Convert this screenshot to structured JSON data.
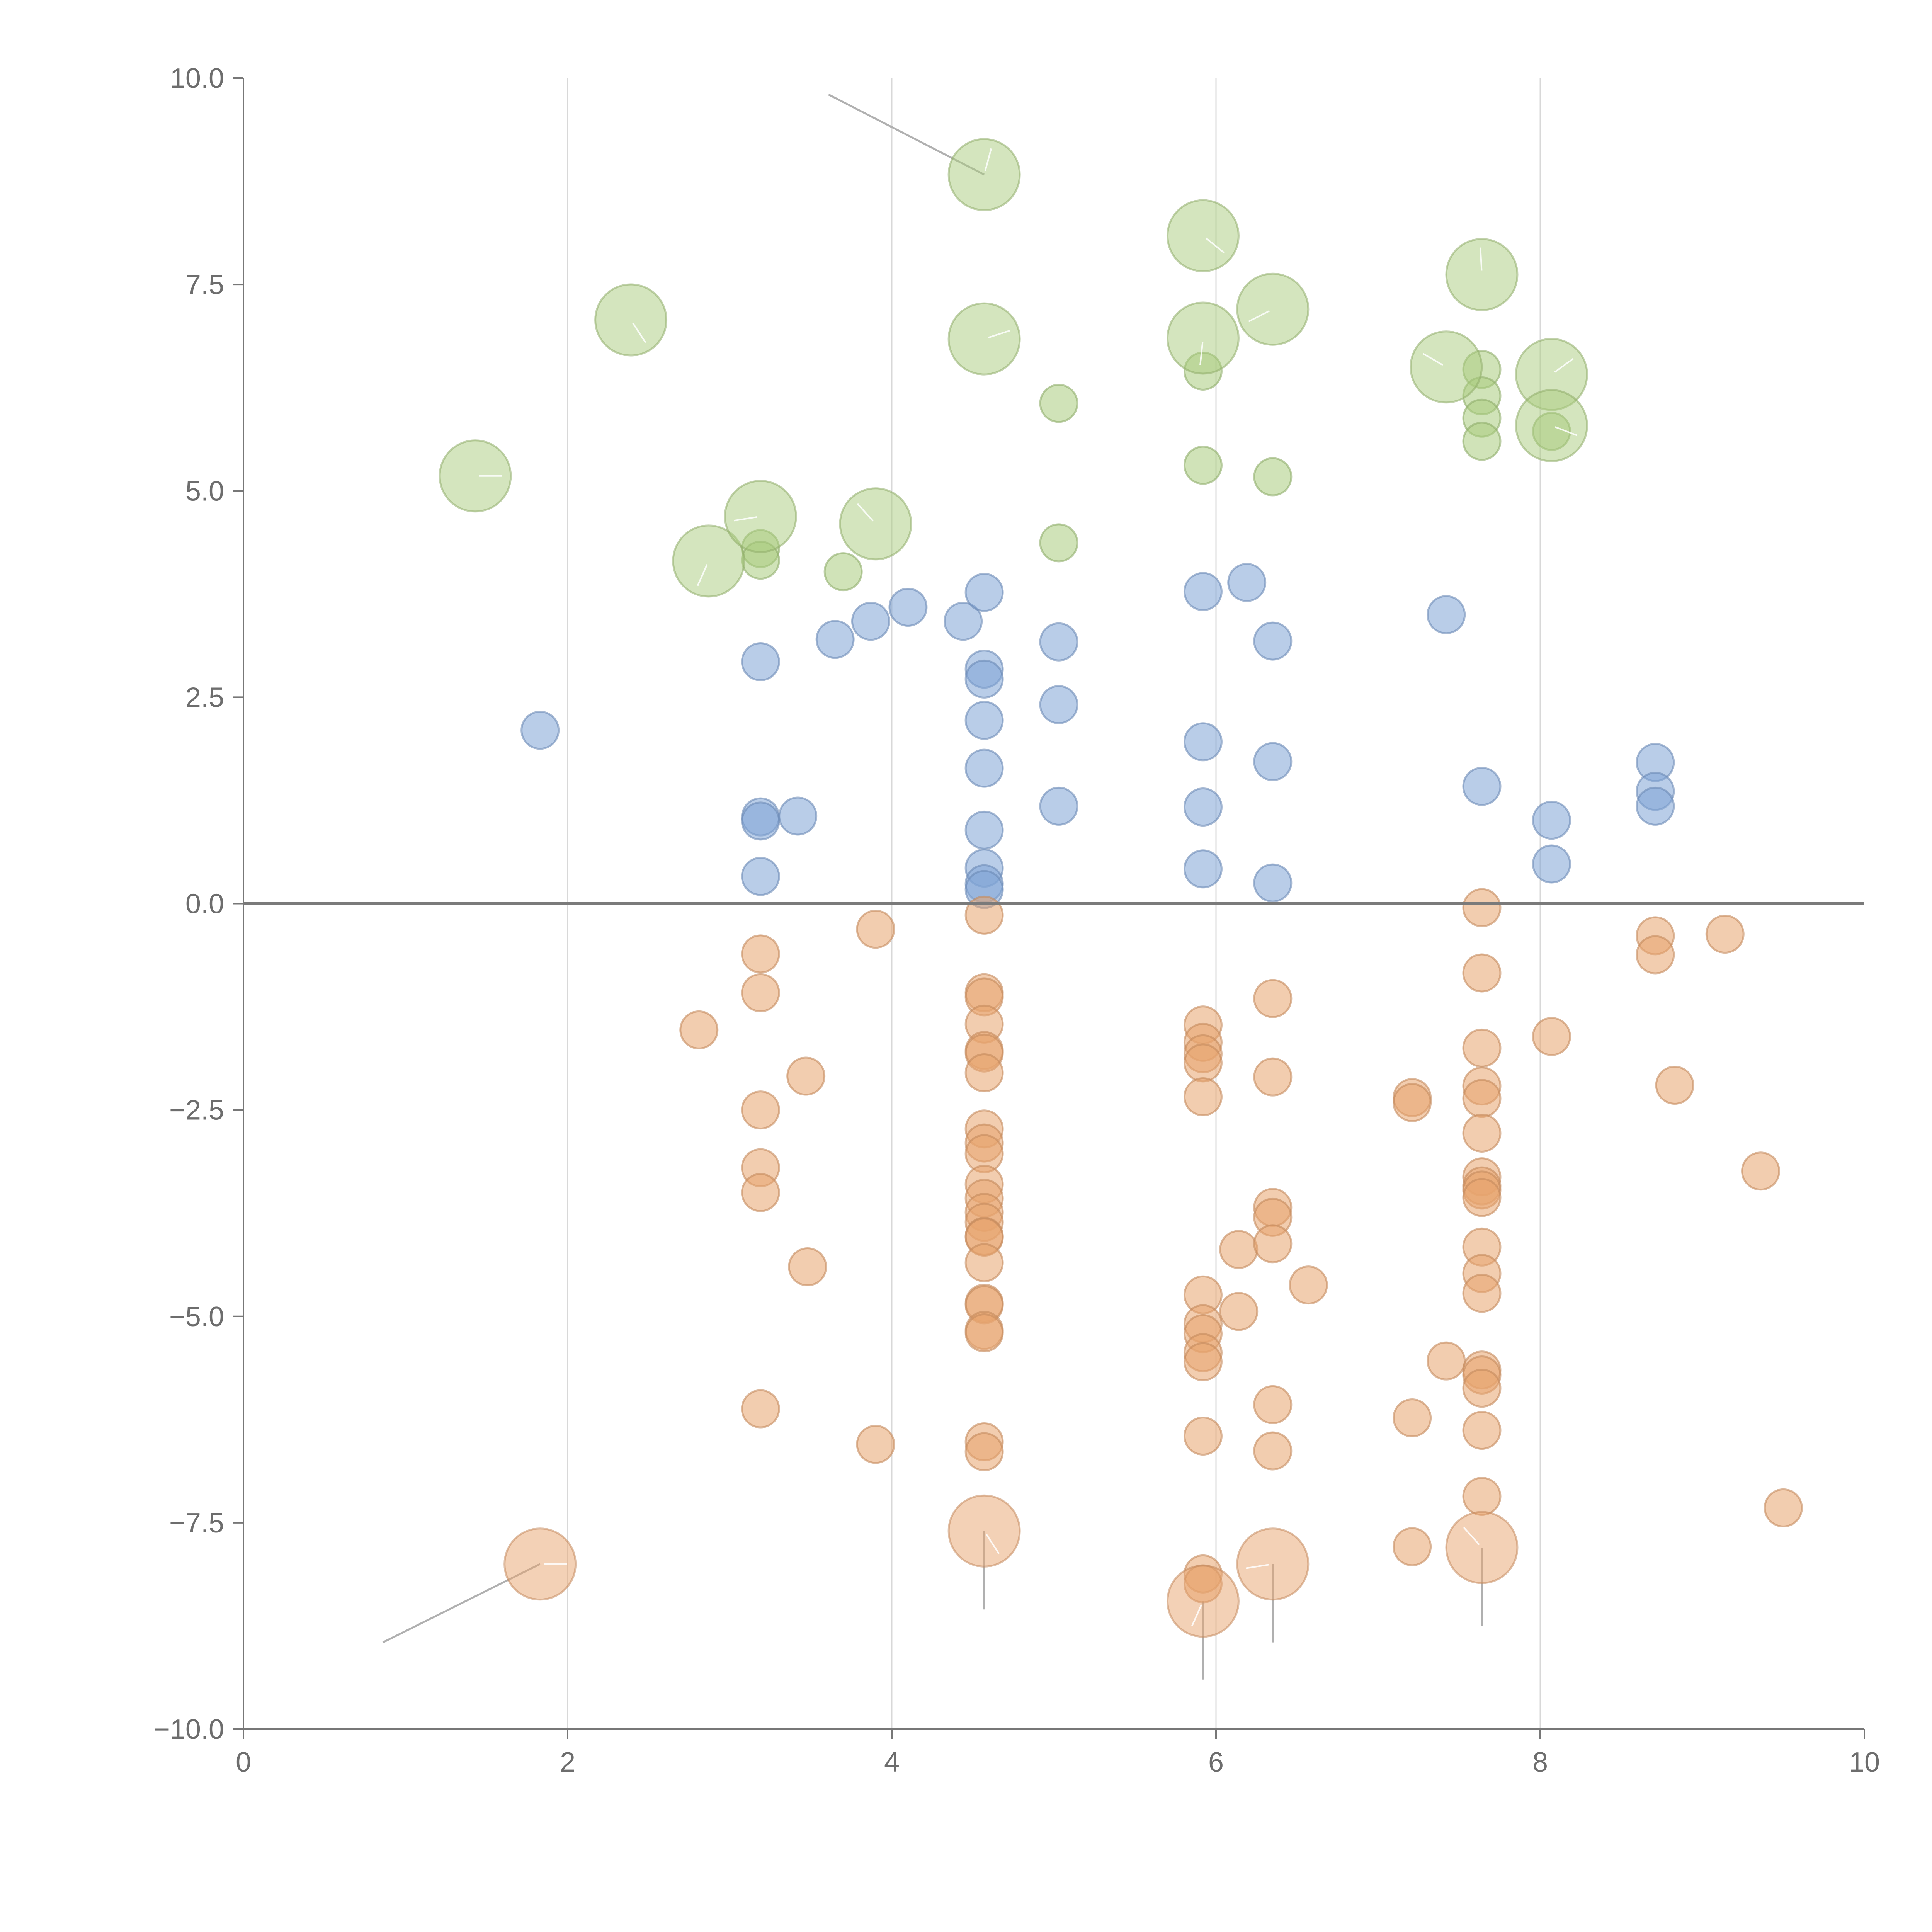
{
  "chart_data": {
    "type": "scatter",
    "title": "",
    "xlabel": "",
    "ylabel": "",
    "xlim": [
      0,
      10
    ],
    "ylim": [
      -10,
      10
    ],
    "x_ticks": [
      0,
      2,
      4,
      6,
      8,
      10
    ],
    "x_tick_labels": [
      "0",
      "2",
      "4",
      "6",
      "8",
      "10"
    ],
    "y_ticks": [
      10,
      7.5,
      5,
      2.5,
      0,
      -2.5,
      -5,
      -7.5,
      -10
    ],
    "y_tick_labels": [
      "10.0",
      "7.5",
      "5.0",
      "2.5",
      "0.0",
      "−2.5",
      "−5.0",
      "−7.5",
      "−10.0"
    ],
    "vertical_gridlines_x": [
      2,
      4,
      6,
      8
    ],
    "zero_line_y": 0,
    "colors": {
      "green": "#a9cc7d",
      "blue": "#7fa4d6",
      "orange": "#e8a46e"
    },
    "series": [
      {
        "name": "green",
        "color": "#a9cc7d",
        "large_points": [
          {
            "x": 1.43,
            "y": 5.18
          },
          {
            "x": 2.39,
            "y": 7.07
          },
          {
            "x": 2.87,
            "y": 4.15
          },
          {
            "x": 3.19,
            "y": 4.69
          },
          {
            "x": 3.9,
            "y": 4.6
          },
          {
            "x": 4.57,
            "y": 8.83
          },
          {
            "x": 4.57,
            "y": 6.84
          },
          {
            "x": 5.92,
            "y": 8.09
          },
          {
            "x": 5.92,
            "y": 6.85
          },
          {
            "x": 6.35,
            "y": 7.2
          },
          {
            "x": 7.42,
            "y": 6.5
          },
          {
            "x": 7.64,
            "y": 7.62
          },
          {
            "x": 8.07,
            "y": 6.41
          },
          {
            "x": 8.07,
            "y": 5.79
          }
        ],
        "small_points": [
          {
            "x": 3.19,
            "y": 4.3
          },
          {
            "x": 3.19,
            "y": 4.16
          },
          {
            "x": 3.7,
            "y": 4.02
          },
          {
            "x": 5.03,
            "y": 6.06
          },
          {
            "x": 5.03,
            "y": 4.37
          },
          {
            "x": 5.92,
            "y": 6.45
          },
          {
            "x": 5.92,
            "y": 5.31
          },
          {
            "x": 6.35,
            "y": 5.17
          },
          {
            "x": 7.64,
            "y": 6.47
          },
          {
            "x": 7.64,
            "y": 6.15
          },
          {
            "x": 7.64,
            "y": 5.88
          },
          {
            "x": 7.64,
            "y": 5.6
          },
          {
            "x": 8.07,
            "y": 5.72
          }
        ]
      },
      {
        "name": "blue",
        "color": "#7fa4d6",
        "small_points": [
          {
            "x": 1.83,
            "y": 2.1
          },
          {
            "x": 3.19,
            "y": 2.93
          },
          {
            "x": 3.19,
            "y": 1.05
          },
          {
            "x": 3.19,
            "y": 1.0
          },
          {
            "x": 3.19,
            "y": 0.33
          },
          {
            "x": 3.42,
            "y": 1.06
          },
          {
            "x": 3.65,
            "y": 3.2
          },
          {
            "x": 3.87,
            "y": 3.42
          },
          {
            "x": 4.1,
            "y": 3.59
          },
          {
            "x": 4.44,
            "y": 3.42
          },
          {
            "x": 4.57,
            "y": 3.77
          },
          {
            "x": 4.57,
            "y": 2.84
          },
          {
            "x": 4.57,
            "y": 2.72
          },
          {
            "x": 4.57,
            "y": 2.22
          },
          {
            "x": 4.57,
            "y": 1.64
          },
          {
            "x": 4.57,
            "y": 0.89
          },
          {
            "x": 4.57,
            "y": 0.43
          },
          {
            "x": 4.57,
            "y": 0.24
          },
          {
            "x": 4.57,
            "y": 0.17
          },
          {
            "x": 5.03,
            "y": 3.17
          },
          {
            "x": 5.03,
            "y": 2.41
          },
          {
            "x": 5.03,
            "y": 1.18
          },
          {
            "x": 5.92,
            "y": 3.78
          },
          {
            "x": 5.92,
            "y": 1.96
          },
          {
            "x": 5.92,
            "y": 1.17
          },
          {
            "x": 5.92,
            "y": 0.42
          },
          {
            "x": 6.19,
            "y": 3.89
          },
          {
            "x": 6.35,
            "y": 3.18
          },
          {
            "x": 6.35,
            "y": 1.72
          },
          {
            "x": 6.35,
            "y": 0.25
          },
          {
            "x": 7.42,
            "y": 3.5
          },
          {
            "x": 7.64,
            "y": 1.42
          },
          {
            "x": 8.07,
            "y": 1.01
          },
          {
            "x": 8.07,
            "y": 0.48
          },
          {
            "x": 8.71,
            "y": 1.71
          },
          {
            "x": 8.71,
            "y": 1.36
          },
          {
            "x": 8.71,
            "y": 1.18
          }
        ]
      },
      {
        "name": "orange",
        "color": "#e8a46e",
        "large_points": [
          {
            "x": 1.83,
            "y": -8.0
          },
          {
            "x": 4.57,
            "y": -7.6
          },
          {
            "x": 5.92,
            "y": -8.45
          },
          {
            "x": 6.35,
            "y": -8.0
          },
          {
            "x": 7.64,
            "y": -7.8
          }
        ],
        "small_points": [
          {
            "x": 2.81,
            "y": -1.53
          },
          {
            "x": 3.19,
            "y": -0.61
          },
          {
            "x": 3.19,
            "y": -1.08
          },
          {
            "x": 3.19,
            "y": -2.5
          },
          {
            "x": 3.19,
            "y": -3.2
          },
          {
            "x": 3.19,
            "y": -3.5
          },
          {
            "x": 3.19,
            "y": -6.12
          },
          {
            "x": 3.47,
            "y": -2.09
          },
          {
            "x": 3.48,
            "y": -4.4
          },
          {
            "x": 3.9,
            "y": -0.31
          },
          {
            "x": 3.9,
            "y": -6.55
          },
          {
            "x": 4.57,
            "y": -0.14
          },
          {
            "x": 4.57,
            "y": -1.08
          },
          {
            "x": 4.57,
            "y": -1.13
          },
          {
            "x": 4.57,
            "y": -1.46
          },
          {
            "x": 4.57,
            "y": -1.78
          },
          {
            "x": 4.57,
            "y": -1.81
          },
          {
            "x": 4.57,
            "y": -2.05
          },
          {
            "x": 4.57,
            "y": -2.73
          },
          {
            "x": 4.57,
            "y": -2.9
          },
          {
            "x": 4.57,
            "y": -3.03
          },
          {
            "x": 4.57,
            "y": -3.4
          },
          {
            "x": 4.57,
            "y": -3.57
          },
          {
            "x": 4.57,
            "y": -3.74
          },
          {
            "x": 4.57,
            "y": -3.86
          },
          {
            "x": 4.57,
            "y": -4.03
          },
          {
            "x": 4.57,
            "y": -4.04
          },
          {
            "x": 4.57,
            "y": -4.35
          },
          {
            "x": 4.57,
            "y": -4.84
          },
          {
            "x": 4.57,
            "y": -4.86
          },
          {
            "x": 4.57,
            "y": -5.17
          },
          {
            "x": 4.57,
            "y": -5.2
          },
          {
            "x": 4.57,
            "y": -6.52
          },
          {
            "x": 4.57,
            "y": -6.64
          },
          {
            "x": 5.92,
            "y": -1.47
          },
          {
            "x": 5.92,
            "y": -1.68
          },
          {
            "x": 5.92,
            "y": -1.82
          },
          {
            "x": 5.92,
            "y": -1.93
          },
          {
            "x": 5.92,
            "y": -2.34
          },
          {
            "x": 5.92,
            "y": -4.74
          },
          {
            "x": 5.92,
            "y": -5.09
          },
          {
            "x": 5.92,
            "y": -5.21
          },
          {
            "x": 5.92,
            "y": -5.44
          },
          {
            "x": 5.92,
            "y": -5.55
          },
          {
            "x": 5.92,
            "y": -6.45
          },
          {
            "x": 5.92,
            "y": -8.12
          },
          {
            "x": 5.92,
            "y": -8.24
          },
          {
            "x": 6.14,
            "y": -4.19
          },
          {
            "x": 6.14,
            "y": -4.94
          },
          {
            "x": 6.35,
            "y": -1.15
          },
          {
            "x": 6.35,
            "y": -2.1
          },
          {
            "x": 6.35,
            "y": -3.68
          },
          {
            "x": 6.35,
            "y": -3.8
          },
          {
            "x": 6.35,
            "y": -4.12
          },
          {
            "x": 6.35,
            "y": -6.07
          },
          {
            "x": 6.35,
            "y": -6.63
          },
          {
            "x": 6.57,
            "y": -4.62
          },
          {
            "x": 7.21,
            "y": -2.35
          },
          {
            "x": 7.21,
            "y": -2.41
          },
          {
            "x": 7.21,
            "y": -6.23
          },
          {
            "x": 7.21,
            "y": -7.79
          },
          {
            "x": 7.42,
            "y": -5.54
          },
          {
            "x": 7.64,
            "y": -0.05
          },
          {
            "x": 7.64,
            "y": -0.84
          },
          {
            "x": 7.64,
            "y": -1.75
          },
          {
            "x": 7.64,
            "y": -2.21
          },
          {
            "x": 7.64,
            "y": -2.36
          },
          {
            "x": 7.64,
            "y": -2.78
          },
          {
            "x": 7.64,
            "y": -3.31
          },
          {
            "x": 7.64,
            "y": -3.42
          },
          {
            "x": 7.64,
            "y": -3.47
          },
          {
            "x": 7.64,
            "y": -3.56
          },
          {
            "x": 7.64,
            "y": -4.16
          },
          {
            "x": 7.64,
            "y": -4.48
          },
          {
            "x": 7.64,
            "y": -4.72
          },
          {
            "x": 7.64,
            "y": -5.65
          },
          {
            "x": 7.64,
            "y": -5.71
          },
          {
            "x": 7.64,
            "y": -5.87
          },
          {
            "x": 7.64,
            "y": -6.38
          },
          {
            "x": 7.64,
            "y": -7.18
          },
          {
            "x": 8.07,
            "y": -1.61
          },
          {
            "x": 8.71,
            "y": -0.39
          },
          {
            "x": 8.71,
            "y": -0.62
          },
          {
            "x": 8.83,
            "y": -2.2
          },
          {
            "x": 9.14,
            "y": -0.37
          },
          {
            "x": 9.36,
            "y": -3.24
          },
          {
            "x": 9.5,
            "y": -7.32
          }
        ]
      }
    ],
    "leader_lines": [
      {
        "from": [
          4.57,
          8.83
        ],
        "to": [
          3.61,
          9.8
        ]
      },
      {
        "from": [
          1.83,
          -8.0
        ],
        "to": [
          0.86,
          -8.95
        ]
      },
      {
        "from": [
          4.57,
          -7.6
        ],
        "to": [
          4.57,
          -8.55
        ]
      },
      {
        "from": [
          5.92,
          -8.45
        ],
        "to": [
          5.92,
          -9.4
        ]
      },
      {
        "from": [
          6.35,
          -8.0
        ],
        "to": [
          6.35,
          -8.95
        ]
      },
      {
        "from": [
          7.64,
          -7.8
        ],
        "to": [
          7.64,
          -8.75
        ]
      }
    ]
  }
}
